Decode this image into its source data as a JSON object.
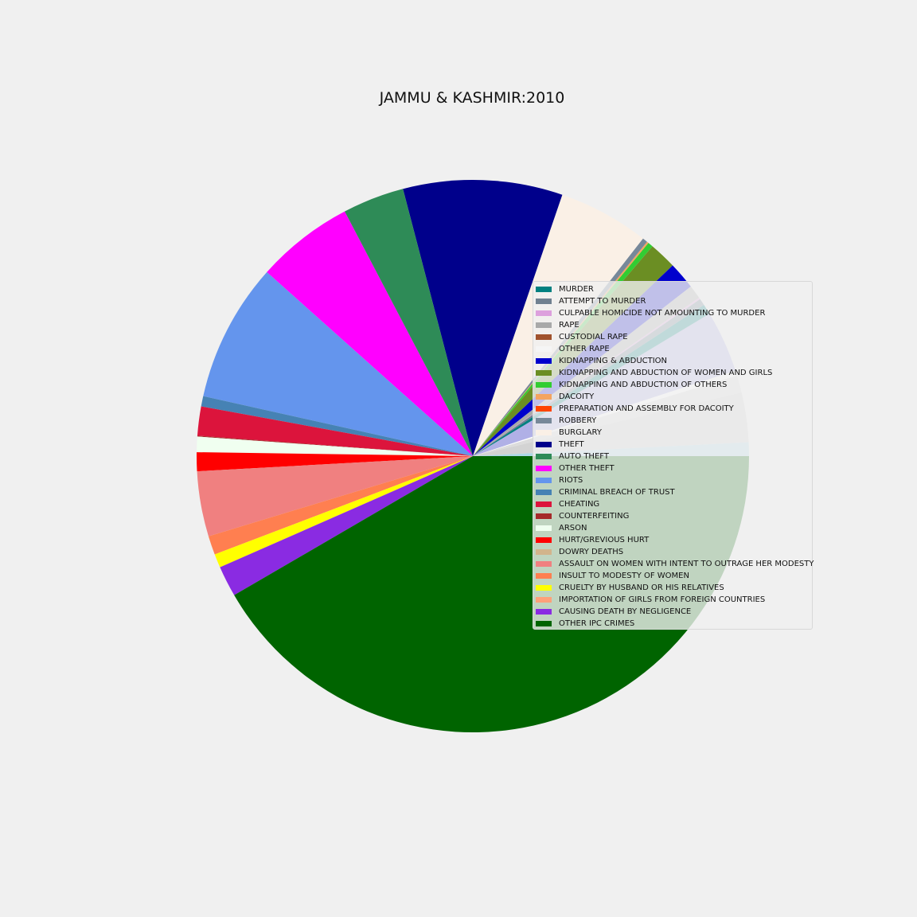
{
  "chart_data": {
    "type": "pie",
    "title": "JAMMU & KASHMIR:2010",
    "legend_position": "right-center",
    "start_angle_deg": 0,
    "direction": "counterclockwise",
    "slices": [
      {
        "label": "MURDER",
        "value": 0.6,
        "color": "#008080"
      },
      {
        "label": "ATTEMPT TO MURDER",
        "value": 0.4,
        "color": "#708090"
      },
      {
        "label": "CULPABLE HOMICIDE NOT AMOUNTING TO MURDER",
        "value": 0.1,
        "color": "#dda0dd"
      },
      {
        "label": "RAPE",
        "value": 0.8,
        "color": "#a9a9a9"
      },
      {
        "label": "CUSTODIAL RAPE",
        "value": 0.0,
        "color": "#a0522d"
      },
      {
        "label": "OTHER RAPE",
        "value": 0.0,
        "color": "#f5f5f5"
      },
      {
        "label": "KIDNAPPING & ABDUCTION",
        "value": 1.6,
        "color": "#0000cd"
      },
      {
        "label": "KIDNAPPING AND ABDUCTION OF WOMEN AND GIRLS",
        "value": 1.6,
        "color": "#6b8e23"
      },
      {
        "label": "KIDNAPPING AND ABDUCTION OF OTHERS",
        "value": 0.3,
        "color": "#32cd32"
      },
      {
        "label": "DACOITY",
        "value": 0.1,
        "color": "#f4a460"
      },
      {
        "label": "PREPARATION AND ASSEMBLY FOR DACOITY",
        "value": 0.0,
        "color": "#ff4500"
      },
      {
        "label": "ROBBERY",
        "value": 0.3,
        "color": "#778899"
      },
      {
        "label": "BURGLARY",
        "value": 5.3,
        "color": "#faf0e6"
      },
      {
        "label": "THEFT",
        "value": 9.3,
        "color": "#00008b"
      },
      {
        "label": "AUTO THEFT",
        "value": 3.6,
        "color": "#2e8b57"
      },
      {
        "label": "OTHER THEFT",
        "value": 5.7,
        "color": "#ff00ff"
      },
      {
        "label": "RIOTS",
        "value": 8.1,
        "color": "#6495ed"
      },
      {
        "label": "CRIMINAL BREACH OF TRUST",
        "value": 0.6,
        "color": "#4682b4"
      },
      {
        "label": "CHEATING",
        "value": 1.7,
        "color": "#dc143c"
      },
      {
        "label": "COUNTERFEITING",
        "value": 0.05,
        "color": "#a52a2a"
      },
      {
        "label": "ARSON",
        "value": 0.9,
        "color": "#f0fff0"
      },
      {
        "label": "HURT/GREVIOUS HURT",
        "value": 1.1,
        "color": "#ff0000"
      },
      {
        "label": "DOWRY DEATHS",
        "value": 0.0,
        "color": "#d2b48c"
      },
      {
        "label": "ASSAULT ON WOMEN WITH INTENT TO OUTRAGE HER MODESTY",
        "value": 3.8,
        "color": "#f08080"
      },
      {
        "label": "INSULT TO MODESTY OF WOMEN",
        "value": 1.1,
        "color": "#ff7f50"
      },
      {
        "label": "CRUELTY BY HUSBAND OR HIS RELATIVES",
        "value": 0.8,
        "color": "#ffff00"
      },
      {
        "label": "IMPORTATION OF GIRLS FROM FOREIGN COUNTRIES",
        "value": 0.0,
        "color": "#ffa07a"
      },
      {
        "label": "CAUSING DEATH BY NEGLIGENCE",
        "value": 1.8,
        "color": "#8a2be2"
      },
      {
        "label": "OTHER IPC CRIMES",
        "value": 41.5,
        "color": "#006400"
      }
    ],
    "unlisted_slices": [
      {
        "value": 0.8,
        "color": "#add8e6"
      },
      {
        "value": 2.9,
        "color": "#d3d3d3"
      },
      {
        "value": 1.0,
        "color": "#dcdcdc"
      },
      {
        "value": 0.3,
        "color": "#ffffff"
      },
      {
        "value": 3.6,
        "color": "#b0b0e6"
      }
    ]
  }
}
